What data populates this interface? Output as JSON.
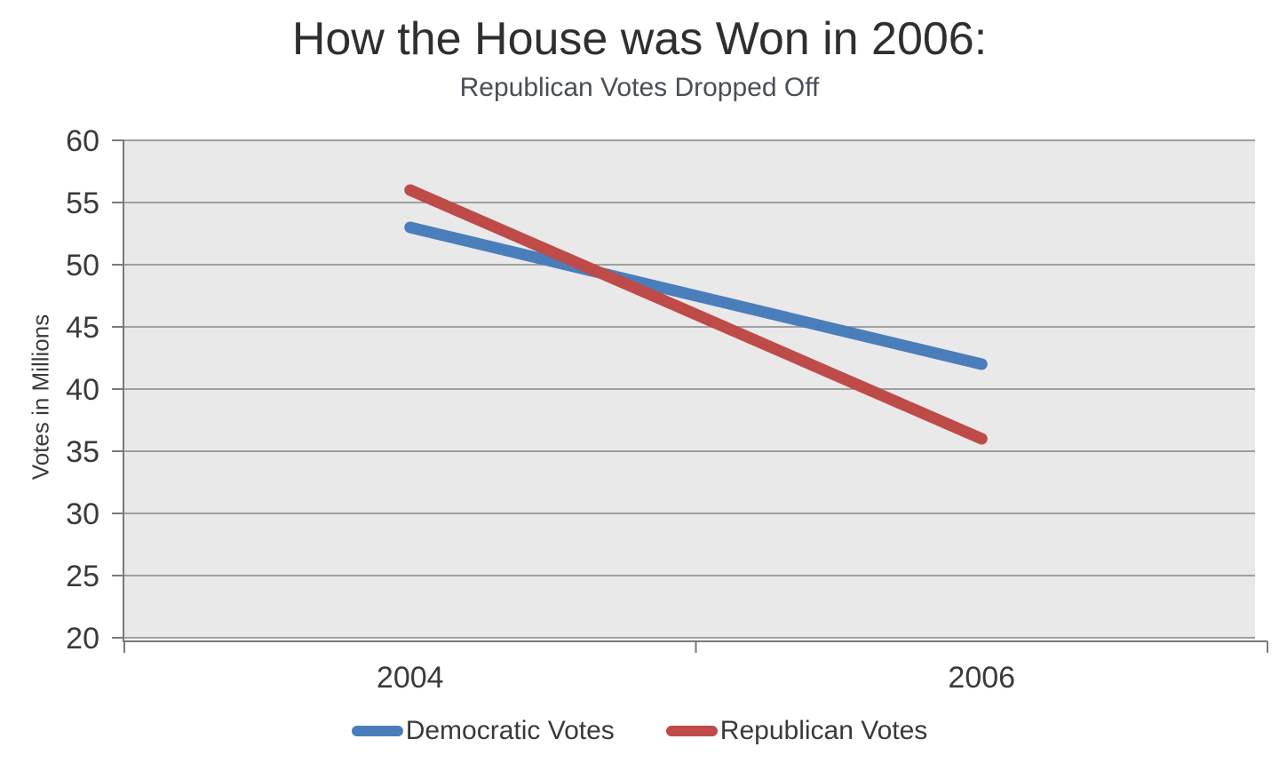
{
  "page": {
    "title": "How the House was Won in 2006:",
    "subtitle": "Republican Votes Dropped Off"
  },
  "chart_data": {
    "type": "line",
    "title": "How the House was Won in 2006:",
    "subtitle": "Republican Votes Dropped Off",
    "categories": [
      "2004",
      "2006"
    ],
    "series": [
      {
        "name": "Democratic Votes",
        "values": [
          53,
          42
        ],
        "color": "#4a7ebb"
      },
      {
        "name": "Republican Votes",
        "values": [
          56,
          36
        ],
        "color": "#be4b48"
      }
    ],
    "xlabel": "",
    "ylabel": "Votes in Millions",
    "ylim": [
      20,
      60
    ],
    "yticks": [
      20,
      25,
      30,
      35,
      40,
      45,
      50,
      55,
      60
    ],
    "grid": true,
    "legend_position": "bottom",
    "line_width": 13,
    "colors": {
      "plot_background": "#e9e9e9",
      "gridline": "#9f9f9f",
      "axis": "#7a7a7a",
      "tick_text": "#3a3a3a",
      "title_text": "#2f2f2f",
      "subtitle_text": "#4a4e57"
    }
  }
}
